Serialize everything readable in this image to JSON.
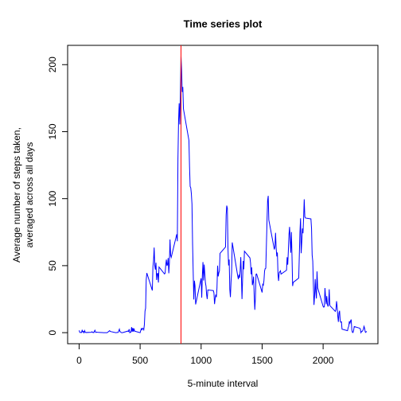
{
  "chart_data": {
    "type": "line",
    "title": "Time series plot",
    "xlabel": "5-minute interval",
    "ylabel": [
      "Average number of steps taken,",
      "averaged across all days"
    ],
    "x": [
      0,
      5,
      10,
      15,
      20,
      25,
      30,
      35,
      40,
      45,
      50,
      55,
      100,
      105,
      110,
      115,
      120,
      125,
      130,
      135,
      140,
      145,
      150,
      200,
      230,
      250,
      255,
      300,
      320,
      330,
      335,
      340,
      345,
      350,
      355,
      400,
      405,
      410,
      415,
      420,
      425,
      430,
      435,
      440,
      445,
      450,
      455,
      500,
      505,
      510,
      515,
      520,
      525,
      530,
      535,
      540,
      545,
      550,
      555,
      600,
      605,
      610,
      615,
      620,
      625,
      630,
      635,
      640,
      645,
      650,
      655,
      700,
      705,
      710,
      715,
      720,
      725,
      730,
      735,
      740,
      745,
      750,
      755,
      800,
      805,
      810,
      815,
      820,
      825,
      830,
      835,
      840,
      845,
      850,
      855,
      900,
      905,
      910,
      915,
      920,
      925,
      930,
      935,
      940,
      945,
      950,
      955,
      1000,
      1005,
      1010,
      1015,
      1020,
      1025,
      1030,
      1035,
      1040,
      1045,
      1050,
      1055,
      1100,
      1105,
      1110,
      1115,
      1120,
      1125,
      1130,
      1135,
      1140,
      1145,
      1150,
      1155,
      1200,
      1205,
      1210,
      1215,
      1220,
      1225,
      1230,
      1235,
      1240,
      1245,
      1250,
      1255,
      1300,
      1305,
      1310,
      1315,
      1320,
      1325,
      1330,
      1335,
      1340,
      1345,
      1350,
      1355,
      1400,
      1405,
      1410,
      1415,
      1420,
      1425,
      1430,
      1435,
      1440,
      1445,
      1450,
      1455,
      1500,
      1505,
      1510,
      1515,
      1520,
      1525,
      1530,
      1535,
      1540,
      1545,
      1550,
      1555,
      1600,
      1605,
      1610,
      1615,
      1620,
      1625,
      1630,
      1635,
      1640,
      1645,
      1650,
      1655,
      1700,
      1705,
      1710,
      1715,
      1720,
      1725,
      1730,
      1735,
      1740,
      1745,
      1750,
      1755,
      1800,
      1805,
      1810,
      1815,
      1820,
      1825,
      1830,
      1835,
      1840,
      1845,
      1850,
      1855,
      1900,
      1905,
      1910,
      1915,
      1920,
      1925,
      1930,
      1935,
      1940,
      1945,
      1950,
      1955,
      2000,
      2005,
      2010,
      2015,
      2020,
      2025,
      2030,
      2035,
      2040,
      2045,
      2050,
      2055,
      2100,
      2105,
      2110,
      2115,
      2120,
      2125,
      2130,
      2135,
      2140,
      2145,
      2150,
      2155,
      2200,
      2205,
      2210,
      2215,
      2220,
      2225,
      2230,
      2235,
      2240,
      2245,
      2250,
      2255,
      2300,
      2305,
      2310,
      2315,
      2320,
      2325,
      2330,
      2335,
      2340,
      2345,
      2350,
      2355
    ],
    "series": [
      {
        "color": "#0000ff",
        "values": [
          1.7,
          0.3,
          0.1,
          0.2,
          0.1,
          2.1,
          0.5,
          0.9,
          0,
          1.5,
          0.3,
          0.1,
          0.3,
          0.7,
          0.2,
          0.3,
          0,
          1.1,
          1.8,
          0.2,
          0.2,
          0.4,
          0.3,
          0,
          0,
          1.5,
          0.9,
          0,
          0.2,
          2.6,
          0.7,
          0.6,
          0.1,
          0,
          0,
          1.2,
          0.9,
          2.6,
          0,
          0.3,
          0.4,
          4.1,
          0.7,
          3.5,
          0.8,
          3.1,
          1.1,
          0,
          1.6,
          3.0,
          2.2,
          3.3,
          3.0,
          2.1,
          6.1,
          16.0,
          18.3,
          39.5,
          44.5,
          31.5,
          49.3,
          53.8,
          63.5,
          50.0,
          47.1,
          52.2,
          39.3,
          44.0,
          44.2,
          37.4,
          49.0,
          43.8,
          44.4,
          50.5,
          54.5,
          49.9,
          51.0,
          55.7,
          44.3,
          52.3,
          69.5,
          57.8,
          56.2,
          73.4,
          68.2,
          129.4,
          157.5,
          171.2,
          155.4,
          177.3,
          206.2,
          195.9,
          179.6,
          183.4,
          167.0,
          143.5,
          124.0,
          109.1,
          108.1,
          103.7,
          96.0,
          66.2,
          45.2,
          24.8,
          38.8,
          35.0,
          21.1,
          40.6,
          26.1,
          42.4,
          52.7,
          38.9,
          50.8,
          44.3,
          37.4,
          34.7,
          28.3,
          25.1,
          31.9,
          31.4,
          29.7,
          21.3,
          25.5,
          28.4,
          26.5,
          33.4,
          50.0,
          42.0,
          44.6,
          46.0,
          59.2,
          63.9,
          87.7,
          94.8,
          92.8,
          63.4,
          50.2,
          54.5,
          32.4,
          26.5,
          37.7,
          45.1,
          67.3,
          42.3,
          39.9,
          43.3,
          41.0,
          46.2,
          56.4,
          42.8,
          25.1,
          40.0,
          53.5,
          47.3,
          60.8,
          55.8,
          52.0,
          43.6,
          48.7,
          35.5,
          37.5,
          41.8,
          27.5,
          17.1,
          26.1,
          43.6,
          43.8,
          30.0,
          36.1,
          35.5,
          38.8,
          46.0,
          47.8,
          48.1,
          65.3,
          82.9,
          98.7,
          102.1,
          84.0,
          62.1,
          64.1,
          74.5,
          63.2,
          56.9,
          59.8,
          43.9,
          38.6,
          44.7,
          45.5,
          46.2,
          43.7,
          46.6,
          56.3,
          50.7,
          61.2,
          73.0,
          78.9,
          68.9,
          59.7,
          75.1,
          56.5,
          34.8,
          37.5,
          40.7,
          58.0,
          74.7,
          85.3,
          59.3,
          67.8,
          77.7,
          74.2,
          85.3,
          99.5,
          86.6,
          85.6,
          84.9,
          77.8,
          58.0,
          53.4,
          36.3,
          20.7,
          27.4,
          40.0,
          30.2,
          25.5,
          45.7,
          33.5,
          19.6,
          19.0,
          19.3,
          33.3,
          26.8,
          21.2,
          27.3,
          21.3,
          19.5,
          21.3,
          32.3,
          20.2,
          15.9,
          17.2,
          23.5,
          19.2,
          12.5,
          8.0,
          14.7,
          16.3,
          8.7,
          7.8,
          8.1,
          2.6,
          1.5,
          3.7,
          4.8,
          8.5,
          7.1,
          8.7,
          9.8,
          2.2,
          0.3,
          0.1,
          1.6,
          4.6,
          3.3,
          2.8,
          0,
          0.8,
          1.0,
          1.6,
          2.6,
          4.7,
          3.3,
          0.6,
          0.2,
          1.1
        ]
      }
    ],
    "vline": {
      "value": 835,
      "color": "#ff0000"
    },
    "xlim": [
      -94.2,
      2449.2
    ],
    "xticks": [
      0,
      500,
      1000,
      1500,
      2000
    ],
    "ylim": [
      -8.25,
      214.4
    ],
    "yticks": [
      0,
      50,
      100,
      150,
      200
    ],
    "grid": false
  }
}
